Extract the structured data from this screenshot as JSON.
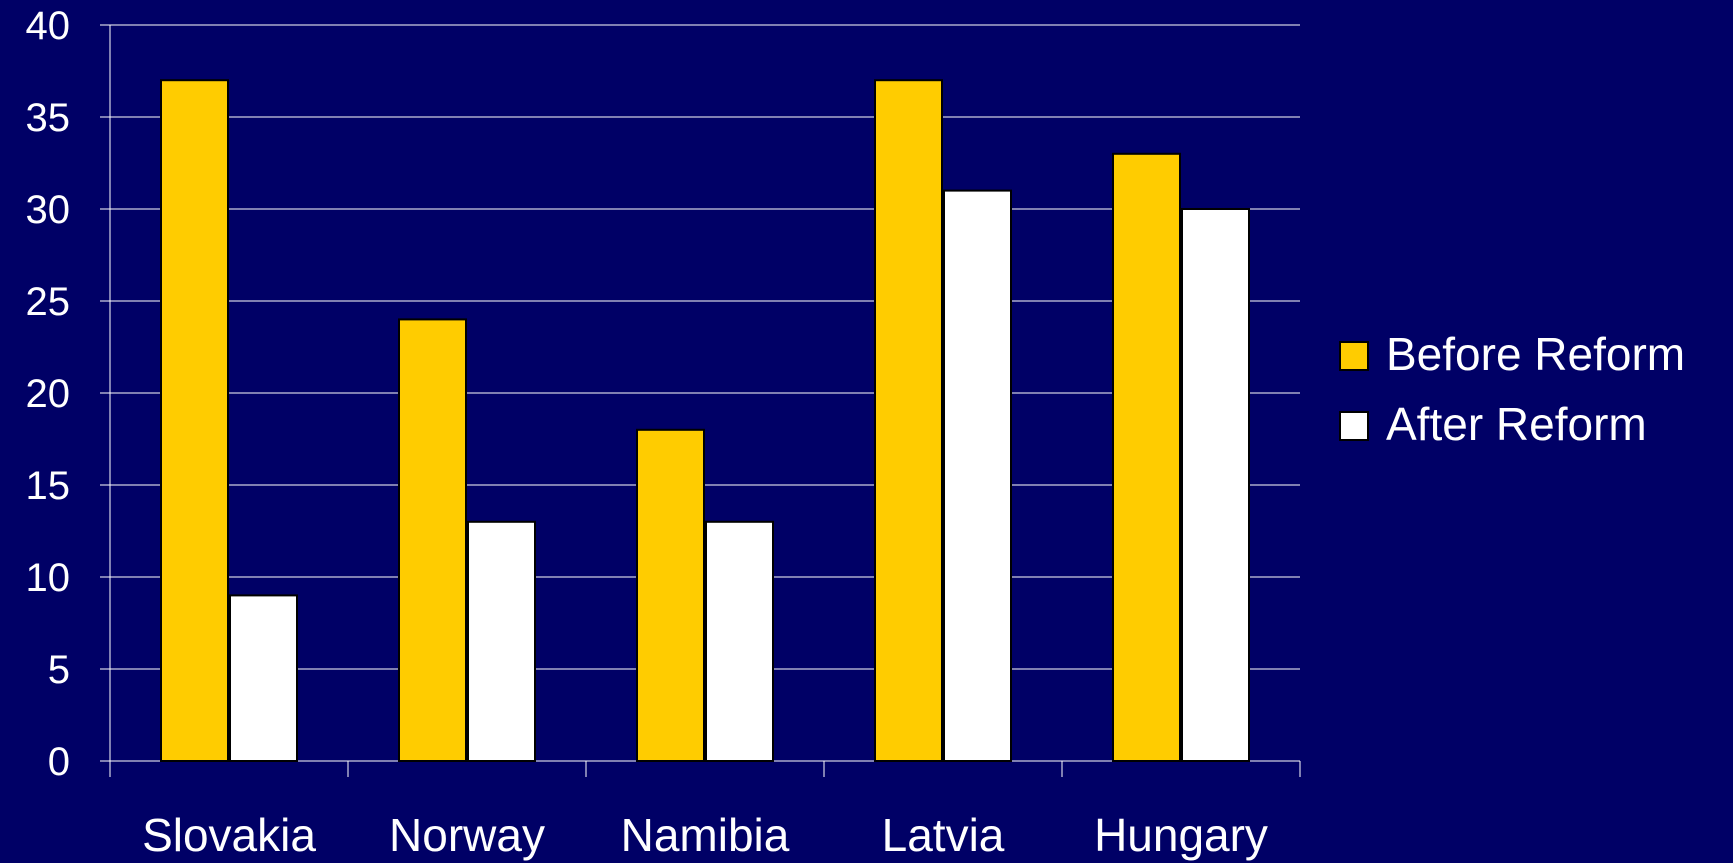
{
  "chart_data": {
    "type": "bar",
    "title": "",
    "xlabel": "",
    "ylabel": "",
    "categories": [
      "Slovakia",
      "Norway",
      "Namibia",
      "Latvia",
      "Hungary"
    ],
    "series": [
      {
        "name": "Before Reform",
        "values": [
          37,
          24,
          18,
          37,
          33
        ],
        "color": "#FFCC00"
      },
      {
        "name": "After Reform",
        "values": [
          9,
          13,
          13,
          31,
          30
        ],
        "color": "#FFFFFF"
      }
    ],
    "ylim": [
      0,
      40
    ],
    "yticks": [
      0,
      5,
      10,
      15,
      20,
      25,
      30,
      35,
      40
    ],
    "grid": true,
    "legend_position": "right"
  },
  "colors": {
    "background": "#000066",
    "axis": "#FFFFFF",
    "grid": "#FFFFFF",
    "bar_outline": "#000000"
  }
}
